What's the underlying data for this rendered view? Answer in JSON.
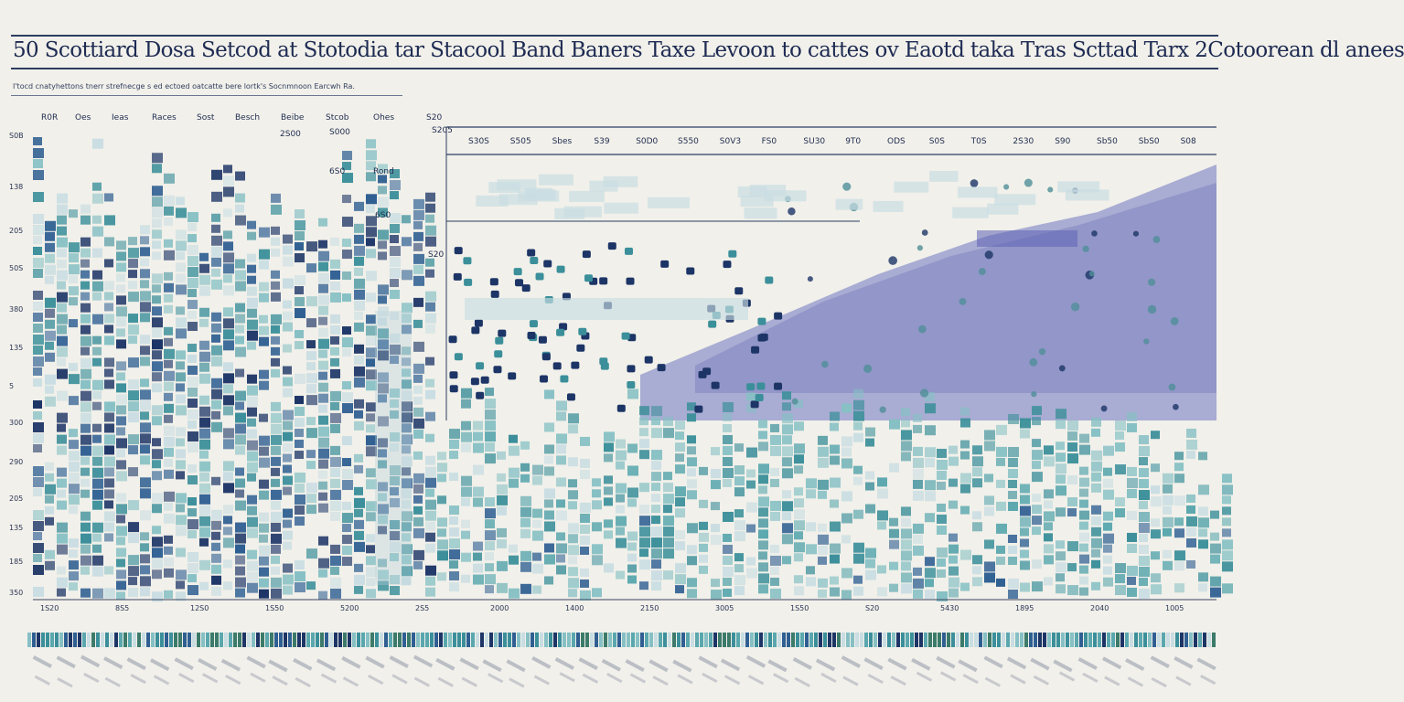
{
  "header": {
    "title": "50 Scottiard Dosa Setcod at Stotodia tar Stacool Band Baners Taxe Levoon to cattes ov Eaotd taka Tras Scttad Tarx 2Cotoorean dl anees",
    "subtitle": "I'tocd cnatyhettons tnerr strefnecge s ed ectoed oatcatte bere lortk's Socnmnoon Earcwh Ra."
  },
  "chart_data": {
    "type": "heatmap",
    "title": "50 Scottiard Dosa Setcod at Stotodia tar Stacool Band Baners Taxe Levoon to cattes ov Eaotd taka Tras Scttad Tarx 2Cotoorean dl anees",
    "subtitle": "I'tocd cnatyhettons tnerr strefnecge s ed ectoed oatcatte bere lortk's Socnmnoon Earcwh Ra.",
    "y_ticks": [
      "S0B",
      "138",
      "205",
      "50S",
      "380",
      "135",
      "5",
      "300",
      "290",
      "205",
      "135",
      "185",
      "350"
    ],
    "column_headers": [
      "R0R",
      "Oes",
      "Ieas",
      "Races",
      "Sost",
      "Besch",
      "Beibe",
      "Stcob",
      "Ohes",
      "S20"
    ],
    "top_table_headers": [
      "S30S",
      "S505",
      "Sbes",
      "S39",
      "S0D0",
      "S550",
      "S0V3",
      "FS0",
      "SU30",
      "9T0",
      "ODS",
      "S0S",
      "T0S",
      "2S30",
      "S90",
      "Sb50",
      "SbS0",
      "S08"
    ],
    "inner_labels": [
      "2S00",
      "S000",
      "6S0",
      "Rond",
      "6S0",
      "S20",
      "S205"
    ],
    "x_labels": [
      "1S20",
      "8S5",
      "12S0",
      "1S50",
      "5200",
      "2S5",
      "2000",
      "1400",
      "2150",
      "3005",
      "1S50",
      "S20",
      "5430",
      "1895",
      "2040",
      "1005"
    ],
    "colors": {
      "navy": "#1d3566",
      "blue": "#2f5f92",
      "teal": "#3b8f9a",
      "aqua": "#86c0c4",
      "pale": "#c9dde2",
      "lavender": "#6e74c0",
      "background": "#f1f0ea"
    }
  }
}
